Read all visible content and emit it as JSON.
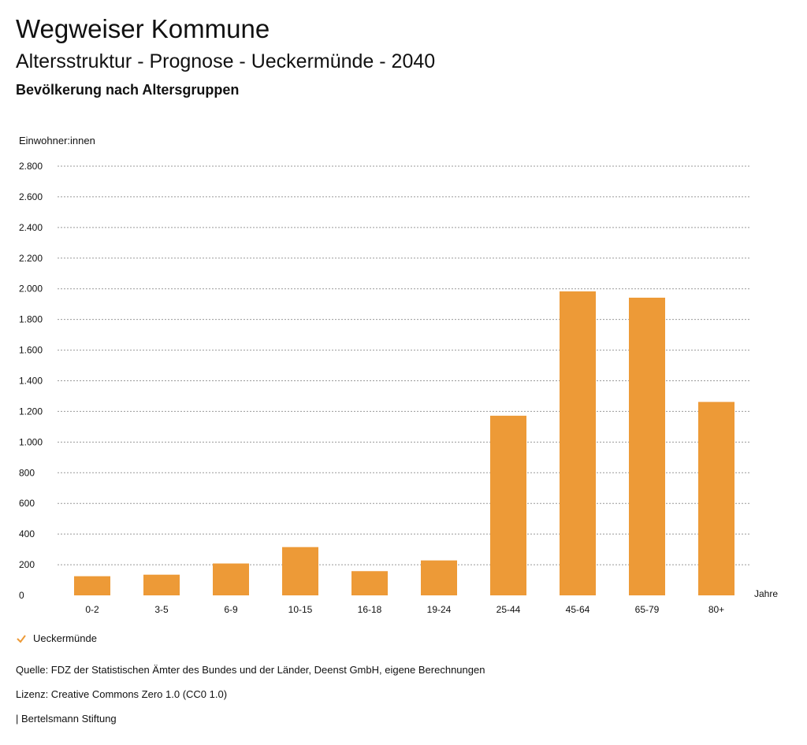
{
  "header": {
    "title": "Wegweiser Kommune",
    "subtitle": "Altersstruktur - Prognose - Ueckermünde - 2040",
    "subsubtitle": "Bevölkerung nach Altersgruppen"
  },
  "chart_data": {
    "type": "bar",
    "ylabel": "Einwohner:innen",
    "xlabel": "Jahre",
    "categories": [
      "0-2",
      "3-5",
      "6-9",
      "10-15",
      "16-18",
      "19-24",
      "25-44",
      "45-64",
      "65-79",
      "80+"
    ],
    "series": [
      {
        "name": "Ueckermünde",
        "values": [
          125,
          135,
          208,
          315,
          158,
          228,
          1172,
          1983,
          1942,
          1262
        ]
      }
    ],
    "ylim": [
      0,
      2800
    ],
    "yticks": [
      0,
      200,
      400,
      600,
      800,
      1000,
      1200,
      1400,
      1600,
      1800,
      2000,
      2200,
      2400,
      2600,
      2800
    ],
    "ytick_labels": [
      "0",
      "200",
      "400",
      "600",
      "800",
      "1.000",
      "1.200",
      "1.400",
      "1.600",
      "1.800",
      "2.000",
      "2.200",
      "2.400",
      "2.600",
      "2.800"
    ],
    "grid": true,
    "legend_position": "bottom-left"
  },
  "colors": {
    "bar": "#ED9A37",
    "grid": "#999999"
  },
  "legend": {
    "label": "Ueckermünde"
  },
  "footer": {
    "source": "Quelle: FDZ der Statistischen Ämter des Bundes und der Länder, Deenst GmbH, eigene Berechnungen",
    "license": "Lizenz: Creative Commons Zero 1.0 (CC0 1.0)",
    "org": "| Bertelsmann Stiftung"
  }
}
